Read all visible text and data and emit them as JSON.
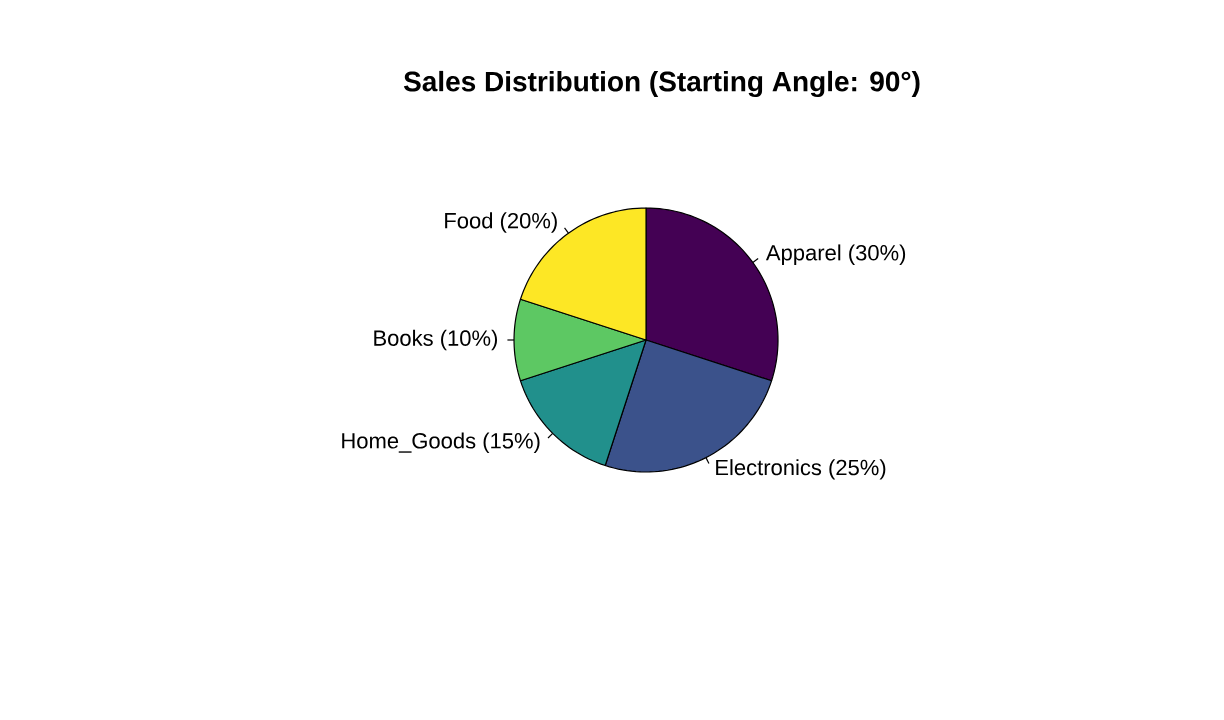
{
  "chart_data": {
    "type": "pie",
    "title": "Sales Distribution (Starting Angle: 90°)",
    "categories": [
      "Apparel (30%)",
      "Electronics (25%)",
      "Home_Goods (15%)",
      "Books (10%)",
      "Food (20%)"
    ],
    "values": [
      30,
      25,
      15,
      10,
      20
    ],
    "colors": [
      "#440154",
      "#3b528b",
      "#21908c",
      "#5dc863",
      "#fde725"
    ]
  }
}
